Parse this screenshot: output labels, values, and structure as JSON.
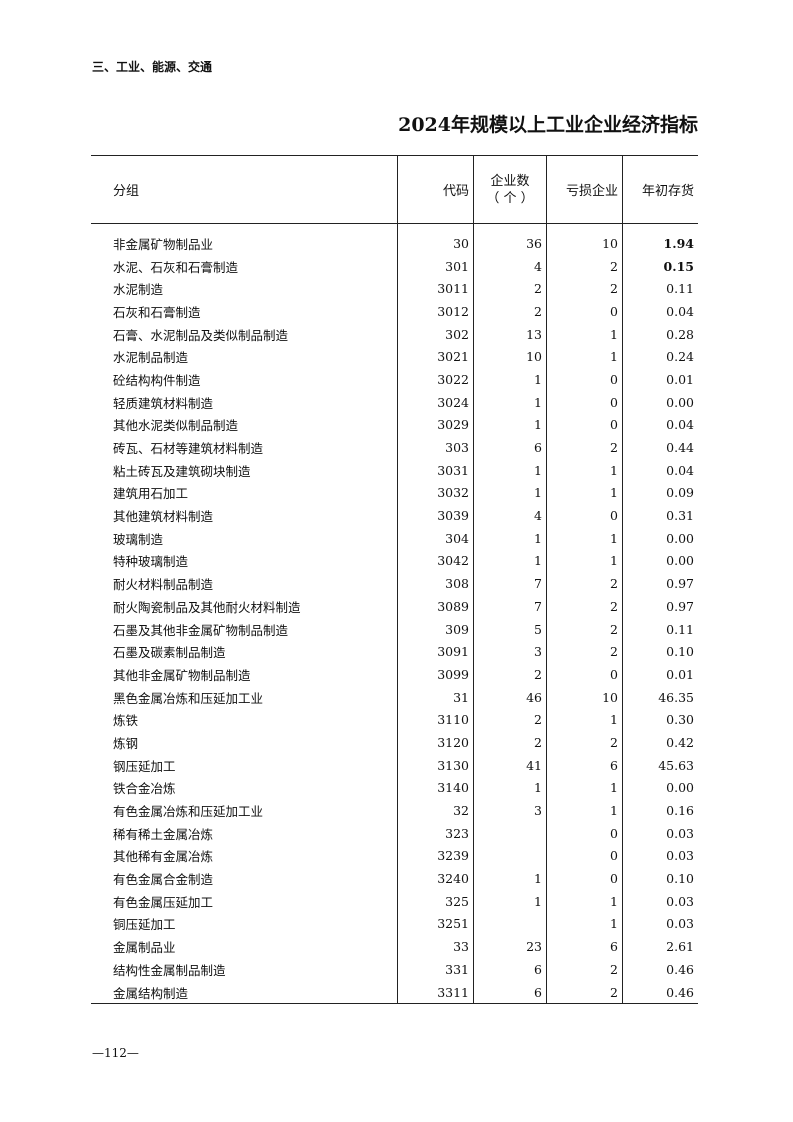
{
  "section": "三、工业、能源、交通",
  "title": "2024年规模以上工业企业经济指标",
  "headers": {
    "group": "分组",
    "code": "代码",
    "firms": "企业数",
    "firms_unit": "（ 个 ）",
    "loss": "亏损企业",
    "inventory": "年初存货"
  },
  "rows": [
    [
      "非金属矿物制品业",
      "30",
      "36",
      "10",
      "1.94"
    ],
    [
      "水泥、石灰和石膏制造",
      "301",
      "4",
      "2",
      "0.15"
    ],
    [
      "水泥制造",
      "3011",
      "2",
      "2",
      "0.11"
    ],
    [
      "石灰和石膏制造",
      "3012",
      "2",
      "0",
      "0.04"
    ],
    [
      "石膏、水泥制品及类似制品制造",
      "302",
      "13",
      "1",
      "0.28"
    ],
    [
      "水泥制品制造",
      "3021",
      "10",
      "1",
      "0.24"
    ],
    [
      "砼结构构件制造",
      "3022",
      "1",
      "0",
      "0.01"
    ],
    [
      "轻质建筑材料制造",
      "3024",
      "1",
      "0",
      "0.00"
    ],
    [
      "其他水泥类似制品制造",
      "3029",
      "1",
      "0",
      "0.04"
    ],
    [
      "砖瓦、石材等建筑材料制造",
      "303",
      "6",
      "2",
      "0.44"
    ],
    [
      "粘土砖瓦及建筑砌块制造",
      "3031",
      "1",
      "1",
      "0.04"
    ],
    [
      "建筑用石加工",
      "3032",
      "1",
      "1",
      "0.09"
    ],
    [
      "其他建筑材料制造",
      "3039",
      "4",
      "0",
      "0.31"
    ],
    [
      "玻璃制造",
      "304",
      "1",
      "1",
      "0.00"
    ],
    [
      "特种玻璃制造",
      "3042",
      "1",
      "1",
      "0.00"
    ],
    [
      "耐火材料制品制造",
      "308",
      "7",
      "2",
      "0.97"
    ],
    [
      "耐火陶瓷制品及其他耐火材料制造",
      "3089",
      "7",
      "2",
      "0.97"
    ],
    [
      "石墨及其他非金属矿物制品制造",
      "309",
      "5",
      "2",
      "0.11"
    ],
    [
      "石墨及碳素制品制造",
      "3091",
      "3",
      "2",
      "0.10"
    ],
    [
      "其他非金属矿物制品制造",
      "3099",
      "2",
      "0",
      "0.01"
    ],
    [
      "黑色金属冶炼和压延加工业",
      "31",
      "46",
      "10",
      "46.35"
    ],
    [
      "炼铁",
      "3110",
      "2",
      "1",
      "0.30"
    ],
    [
      "炼钢",
      "3120",
      "2",
      "2",
      "0.42"
    ],
    [
      "钢压延加工",
      "3130",
      "41",
      "6",
      "45.63"
    ],
    [
      "铁合金冶炼",
      "3140",
      "1",
      "1",
      "0.00"
    ],
    [
      "有色金属冶炼和压延加工业",
      "32",
      "3",
      "1",
      "0.16"
    ],
    [
      "稀有稀土金属冶炼",
      "323",
      "",
      "0",
      "0.03"
    ],
    [
      "其他稀有金属冶炼",
      "3239",
      "",
      "0",
      "0.03"
    ],
    [
      "有色金属合金制造",
      "3240",
      "1",
      "0",
      "0.10"
    ],
    [
      "有色金属压延加工",
      "325",
      "1",
      "1",
      "0.03"
    ],
    [
      "铜压延加工",
      "3251",
      "",
      "1",
      "0.03"
    ],
    [
      "金属制品业",
      "33",
      "23",
      "6",
      "2.61"
    ],
    [
      "结构性金属制品制造",
      "331",
      "6",
      "2",
      "0.46"
    ],
    [
      "金属结构制造",
      "3311",
      "6",
      "2",
      "0.46"
    ]
  ],
  "page_number": "—112—"
}
